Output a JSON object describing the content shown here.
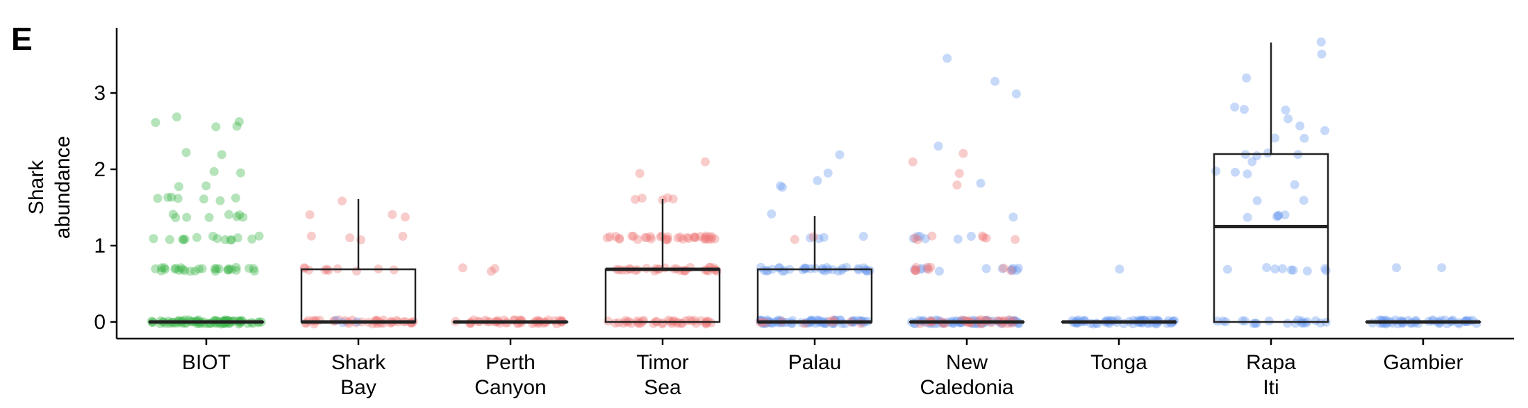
{
  "chart_data": {
    "type": "box-strip",
    "panel_label": "E",
    "ylabel": [
      "Shark",
      "abundance"
    ],
    "ylim": [
      -0.2,
      3.85
    ],
    "yticks": [
      0,
      1,
      2,
      3
    ],
    "grid": false,
    "categories": [
      {
        "id": "biot",
        "label": [
          "BIOT"
        ]
      },
      {
        "id": "shark-bay",
        "label": [
          "Shark",
          "Bay"
        ]
      },
      {
        "id": "perth-canyon",
        "label": [
          "Perth",
          "Canyon"
        ]
      },
      {
        "id": "timor-sea",
        "label": [
          "Timor",
          "Sea"
        ]
      },
      {
        "id": "palau",
        "label": [
          "Palau"
        ]
      },
      {
        "id": "new-caledonia",
        "label": [
          "New",
          "Caledonia"
        ]
      },
      {
        "id": "tonga",
        "label": [
          "Tonga"
        ]
      },
      {
        "id": "rapa-iti",
        "label": [
          "Rapa",
          "Iti"
        ]
      },
      {
        "id": "gambier",
        "label": [
          "Gambier"
        ]
      }
    ],
    "colors": {
      "green": "#3cb54a",
      "red": "#f07a78",
      "blue": "#6d9cee",
      "box": "#222222"
    },
    "boxes": [
      {
        "category": "biot",
        "q1": 0,
        "median": 0,
        "q3": 0,
        "whisker_low": 0,
        "whisker_high": 0
      },
      {
        "category": "shark-bay",
        "q1": 0,
        "median": 0,
        "q3": 0.69,
        "whisker_low": 0,
        "whisker_high": 1.61
      },
      {
        "category": "perth-canyon",
        "q1": 0,
        "median": 0,
        "q3": 0,
        "whisker_low": 0,
        "whisker_high": 0
      },
      {
        "category": "timor-sea",
        "q1": 0,
        "median": 0.69,
        "q3": 0.69,
        "whisker_low": 0,
        "whisker_high": 1.61
      },
      {
        "category": "palau",
        "q1": 0,
        "median": 0,
        "q3": 0.69,
        "whisker_low": 0,
        "whisker_high": 1.39
      },
      {
        "category": "new-caledonia",
        "q1": 0,
        "median": 0,
        "q3": 0,
        "whisker_low": 0,
        "whisker_high": 0
      },
      {
        "category": "tonga",
        "q1": 0,
        "median": 0,
        "q3": 0,
        "whisker_low": 0,
        "whisker_high": 0
      },
      {
        "category": "rapa-iti",
        "q1": 0,
        "median": 1.25,
        "q3": 2.2,
        "whisker_low": 0,
        "whisker_high": 3.66
      },
      {
        "category": "gambier",
        "q1": 0,
        "median": 0,
        "q3": 0,
        "whisker_low": 0,
        "whisker_high": 0
      }
    ],
    "points": [
      {
        "category": "biot",
        "color": "green",
        "values": [
          0,
          0,
          0,
          0,
          0,
          0,
          0,
          0,
          0,
          0,
          0,
          0,
          0,
          0,
          0,
          0,
          0,
          0,
          0,
          0,
          0,
          0,
          0,
          0,
          0,
          0,
          0,
          0,
          0,
          0,
          0,
          0,
          0,
          0,
          0,
          0,
          0,
          0,
          0,
          0,
          0,
          0,
          0,
          0,
          0,
          0,
          0,
          0,
          0,
          0,
          0,
          0,
          0,
          0,
          0,
          0,
          0,
          0,
          0,
          0,
          0,
          0,
          0,
          0,
          0,
          0,
          0,
          0,
          0,
          0,
          0,
          0,
          0,
          0,
          0,
          0,
          0,
          0,
          0,
          0,
          0.69,
          0.69,
          0.69,
          0.69,
          0.69,
          0.69,
          0.69,
          0.69,
          0.69,
          0.69,
          0.69,
          0.69,
          0.69,
          0.69,
          0.69,
          0.69,
          0.69,
          0.69,
          0.69,
          0.69,
          0.69,
          0.69,
          0.69,
          0.69,
          0.69,
          0.69,
          0.69,
          0.69,
          1.1,
          1.1,
          1.1,
          1.1,
          1.1,
          1.1,
          1.1,
          1.1,
          1.1,
          1.1,
          1.1,
          1.1,
          1.1,
          1.1,
          1.39,
          1.39,
          1.39,
          1.39,
          1.39,
          1.39,
          1.39,
          1.39,
          1.61,
          1.61,
          1.61,
          1.61,
          1.61,
          1.61,
          1.61,
          1.79,
          1.79,
          1.95,
          1.95,
          2.2,
          2.2,
          2.56,
          2.56,
          2.64,
          2.64,
          2.67
        ]
      },
      {
        "category": "shark-bay",
        "color": "red",
        "values": [
          0,
          0,
          0,
          0,
          0,
          0,
          0,
          0,
          0,
          0,
          0,
          0,
          0,
          0,
          0,
          0,
          0,
          0,
          0,
          0,
          0,
          0,
          0,
          0,
          0,
          0,
          0,
          0,
          0,
          0,
          0,
          0,
          0,
          0,
          0,
          0,
          0,
          0,
          0.69,
          0.69,
          0.69,
          0.69,
          0.69,
          0.69,
          0.69,
          0.69,
          0.69,
          0.69,
          1.1,
          1.1,
          1.1,
          1.1,
          1.39,
          1.39,
          1.39,
          1.61
        ]
      },
      {
        "category": "shark-bay",
        "color": "blue",
        "values": [
          0,
          0,
          0
        ]
      },
      {
        "category": "perth-canyon",
        "color": "red",
        "values": [
          0,
          0,
          0,
          0,
          0,
          0,
          0,
          0,
          0,
          0,
          0,
          0,
          0,
          0,
          0,
          0,
          0,
          0,
          0,
          0,
          0,
          0,
          0,
          0,
          0,
          0,
          0,
          0,
          0,
          0,
          0,
          0,
          0,
          0,
          0,
          0,
          0,
          0,
          0,
          0,
          0,
          0,
          0,
          0,
          0.69,
          0.69,
          0.69
        ]
      },
      {
        "category": "timor-sea",
        "color": "red",
        "values": [
          0,
          0,
          0,
          0,
          0,
          0,
          0,
          0,
          0,
          0,
          0,
          0,
          0,
          0,
          0,
          0,
          0,
          0,
          0,
          0,
          0,
          0,
          0,
          0,
          0,
          0,
          0,
          0,
          0,
          0,
          0,
          0,
          0,
          0,
          0,
          0,
          0,
          0,
          0,
          0,
          0.69,
          0.69,
          0.69,
          0.69,
          0.69,
          0.69,
          0.69,
          0.69,
          0.69,
          0.69,
          0.69,
          0.69,
          0.69,
          0.69,
          0.69,
          0.69,
          0.69,
          0.69,
          0.69,
          0.69,
          0.69,
          0.69,
          0.69,
          0.69,
          0.69,
          0.69,
          0.69,
          0.69,
          0.69,
          0.69,
          1.1,
          1.1,
          1.1,
          1.1,
          1.1,
          1.1,
          1.1,
          1.1,
          1.1,
          1.1,
          1.1,
          1.1,
          1.1,
          1.1,
          1.1,
          1.1,
          1.1,
          1.1,
          1.1,
          1.1,
          1.1,
          1.1,
          1.1,
          1.1,
          1.1,
          1.1,
          1.1,
          1.1,
          1.1,
          1.1,
          1.1,
          1.1,
          1.1,
          1.1,
          1.1,
          1.1,
          1.61,
          1.61,
          1.61,
          1.61,
          1.61,
          1.95,
          2.08
        ]
      },
      {
        "category": "palau",
        "color": "blue",
        "values": [
          0,
          0,
          0,
          0,
          0,
          0,
          0,
          0,
          0,
          0,
          0,
          0,
          0,
          0,
          0,
          0,
          0,
          0,
          0,
          0,
          0,
          0,
          0,
          0,
          0,
          0,
          0,
          0,
          0,
          0,
          0,
          0,
          0,
          0,
          0,
          0,
          0,
          0,
          0,
          0,
          0,
          0,
          0,
          0,
          0,
          0,
          0,
          0,
          0,
          0,
          0,
          0,
          0,
          0,
          0,
          0,
          0,
          0,
          0,
          0,
          0,
          0,
          0,
          0,
          0,
          0,
          0,
          0,
          0,
          0,
          0.69,
          0.69,
          0.69,
          0.69,
          0.69,
          0.69,
          0.69,
          0.69,
          0.69,
          0.69,
          0.69,
          0.69,
          0.69,
          0.69,
          0.69,
          0.69,
          0.69,
          0.69,
          0.69,
          0.69,
          0.69,
          0.69,
          0.69,
          0.69,
          0.69,
          0.69,
          0.69,
          0.69,
          0.69,
          0.69,
          0.69,
          0.69,
          0.69,
          1.1,
          1.1,
          1.1,
          1.1,
          1.39,
          1.79,
          1.79,
          1.86,
          1.95,
          2.2
        ]
      },
      {
        "category": "palau",
        "color": "red",
        "values": [
          0,
          0,
          0,
          0,
          0,
          0,
          0,
          0,
          0,
          0,
          1.1,
          1.1
        ]
      },
      {
        "category": "new-caledonia",
        "color": "blue",
        "values": [
          0,
          0,
          0,
          0,
          0,
          0,
          0,
          0,
          0,
          0,
          0,
          0,
          0,
          0,
          0,
          0,
          0,
          0,
          0,
          0,
          0,
          0,
          0,
          0,
          0,
          0,
          0,
          0,
          0,
          0,
          0,
          0,
          0,
          0,
          0,
          0,
          0,
          0,
          0,
          0,
          0,
          0,
          0,
          0,
          0,
          0,
          0,
          0,
          0,
          0,
          0,
          0,
          0,
          0,
          0,
          0,
          0,
          0,
          0,
          0,
          0,
          0,
          0,
          0,
          0,
          0,
          0,
          0,
          0,
          0,
          0.69,
          0.69,
          0.69,
          0.69,
          0.69,
          0.69,
          0.69,
          0.69,
          0.69,
          0.69,
          0.69,
          0.69,
          1.1,
          1.1,
          1.1,
          1.1,
          1.1,
          1.1,
          1.39,
          1.79,
          2.3,
          3.0,
          3.14,
          3.43
        ]
      },
      {
        "category": "new-caledonia",
        "color": "red",
        "values": [
          0,
          0,
          0,
          0,
          0,
          0,
          0,
          0,
          0,
          0,
          0,
          0,
          0,
          0,
          0,
          0,
          0,
          0,
          0,
          0,
          0,
          0,
          0,
          0,
          0,
          0,
          0,
          0,
          0,
          0,
          0,
          0.69,
          0.69,
          0.69,
          0.69,
          0.69,
          0.69,
          0.69,
          0.69,
          0.69,
          1.1,
          1.1,
          1.1,
          1.1,
          1.1,
          1.1,
          1.1,
          1.79,
          1.95,
          2.08,
          2.2
        ]
      },
      {
        "category": "tonga",
        "color": "blue",
        "values": [
          0,
          0,
          0,
          0,
          0,
          0,
          0,
          0,
          0,
          0,
          0,
          0,
          0,
          0,
          0,
          0,
          0,
          0,
          0,
          0,
          0,
          0,
          0,
          0,
          0,
          0,
          0,
          0,
          0,
          0,
          0,
          0,
          0,
          0,
          0,
          0,
          0,
          0,
          0,
          0,
          0,
          0,
          0,
          0,
          0,
          0,
          0,
          0,
          0,
          0,
          0,
          0,
          0,
          0,
          0,
          0,
          0,
          0,
          0,
          0,
          0.69
        ]
      },
      {
        "category": "rapa-iti",
        "color": "blue",
        "values": [
          0,
          0,
          0,
          0,
          0,
          0,
          0,
          0,
          0,
          0,
          0,
          0,
          0,
          0,
          0,
          0,
          0,
          0,
          0,
          0,
          0.69,
          0.69,
          0.69,
          0.69,
          0.69,
          0.69,
          0.69,
          0.69,
          0.69,
          1.39,
          1.39,
          1.39,
          1.39,
          1.39,
          1.61,
          1.61,
          1.79,
          1.95,
          1.95,
          1.95,
          2.08,
          2.2,
          2.2,
          2.2,
          2.2,
          2.4,
          2.4,
          2.48,
          2.56,
          2.64,
          2.77,
          2.77,
          2.83,
          3.2,
          3.5,
          3.66
        ]
      },
      {
        "category": "gambier",
        "color": "blue",
        "values": [
          0,
          0,
          0,
          0,
          0,
          0,
          0,
          0,
          0,
          0,
          0,
          0,
          0,
          0,
          0,
          0,
          0,
          0,
          0,
          0,
          0,
          0,
          0,
          0,
          0,
          0,
          0,
          0,
          0,
          0,
          0,
          0,
          0,
          0,
          0,
          0,
          0,
          0,
          0,
          0,
          0,
          0,
          0,
          0,
          0,
          0,
          0,
          0,
          0,
          0,
          0.69,
          0.69
        ]
      }
    ]
  }
}
